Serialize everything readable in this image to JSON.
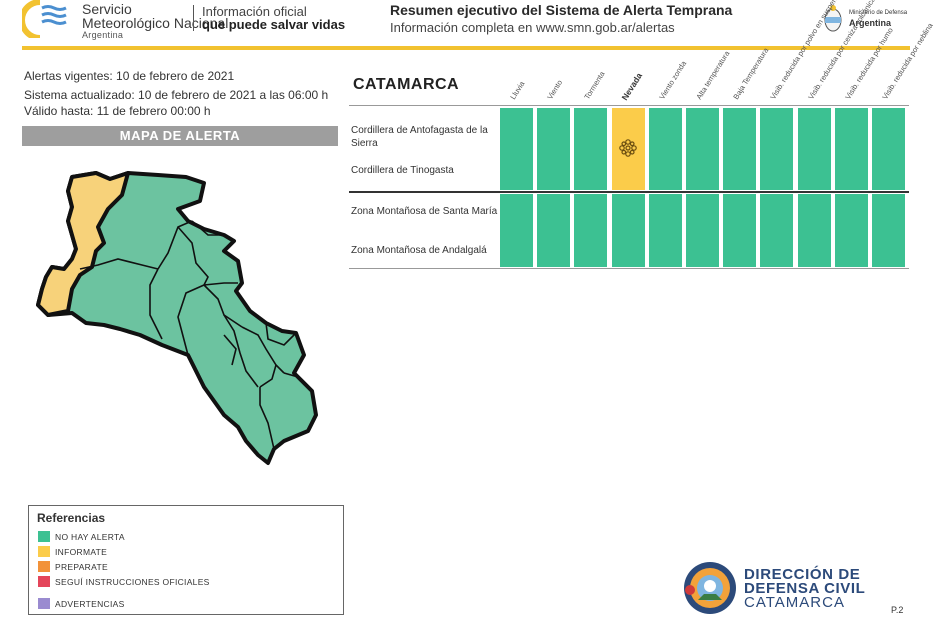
{
  "header": {
    "org_line1": "Servicio",
    "org_line2": "Meteorológico Nacional",
    "org_country": "Argentina",
    "tagline_1": "Información oficial",
    "tagline_2": "que puede salvar vidas",
    "summary_title": "Resumen ejecutivo del Sistema de Alerta Temprana",
    "summary_subtitle": "Información completa en www.smn.gob.ar/alertas",
    "ministry_line1": "Ministerio de Defensa",
    "ministry_line2": "Argentina"
  },
  "info": {
    "alerts_valid": "Alertas vigentes: 10 de febrero de 2021",
    "system_updated": "Sistema actualizado: 10 de febrero de 2021 a las 06:00 h",
    "valid_until": "Válido hasta: 11 de febrero 00:00 h",
    "map_title": "MAPA DE ALERTA"
  },
  "table": {
    "province": "CATAMARCA",
    "columns": [
      "Lluvia",
      "Viento",
      "Tormenta",
      "Nevada",
      "Viento zonda",
      "Alta temperatura",
      "Baja Temperatura",
      "Visib. reducida por polvo en suspensión",
      "Visib. reducida por ceniza volcánica",
      "Visib. reducida por humo",
      "Visib. reducida por neblina"
    ],
    "groups": [
      {
        "zones": [
          "Cordillera de Antofagasta de la Sierra",
          "Cordillera de Tinogasta"
        ],
        "levels": [
          "green",
          "green",
          "green",
          "yellow",
          "green",
          "green",
          "green",
          "green",
          "green",
          "green",
          "green"
        ]
      },
      {
        "zones": [
          "Zona Montañosa de Santa María",
          "Zona Montañosa de Andalgalá"
        ],
        "levels": [
          "green",
          "green",
          "green",
          "green",
          "green",
          "green",
          "green",
          "green",
          "green",
          "green",
          "green"
        ]
      }
    ]
  },
  "legend": {
    "title": "Referencias",
    "items": [
      {
        "label": "NO HAY ALERTA",
        "color": "#3cc192"
      },
      {
        "label": "INFORMATE",
        "color": "#fbcc4a"
      },
      {
        "label": "PREPARATE",
        "color": "#f2923a"
      },
      {
        "label": "SEGUÍ INSTRUCCIONES OFICIALES",
        "color": "#e4455a"
      },
      {
        "label": "ADVERTENCIAS",
        "color": "#9a8bd0"
      }
    ]
  },
  "colors": {
    "green": "#3cc192",
    "yellow": "#fbcc4a",
    "gold_rule": "#f2c230",
    "defensa_blue": "#2c4a7a"
  },
  "icons": {
    "snow": "snowflake-icon",
    "smn_logo": "smn-logo-icon",
    "ministry": "argentina-shield-icon",
    "defensa_civil": "defensa-civil-seal-icon"
  },
  "footer": {
    "dc_line1": "DIRECCIÓN DE",
    "dc_line2": "DEFENSA CIVIL",
    "dc_line3": "CATAMARCA",
    "page": "P.2"
  }
}
